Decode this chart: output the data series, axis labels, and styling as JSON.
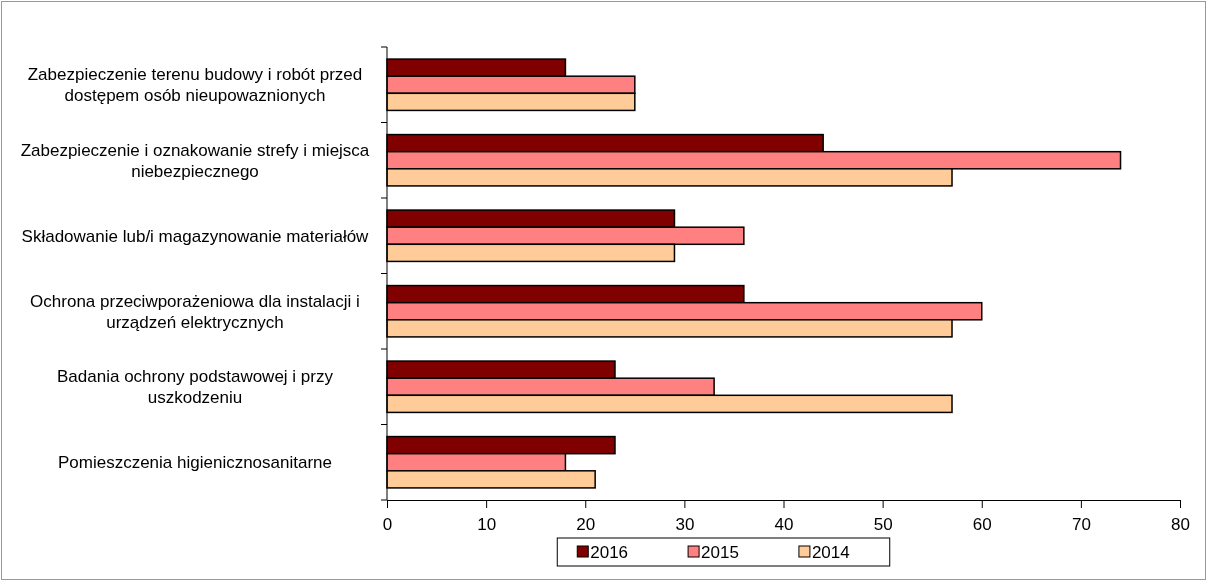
{
  "chart_data": {
    "type": "bar",
    "orientation": "horizontal",
    "categories": [
      "Zabezpieczenie terenu budowy i robót przed dostępem osób nieupowaznionych",
      "Zabezpieczenie i oznakowanie strefy i miejsca niebezpiecznego",
      "Składowanie lub/i magazynowanie materiałów",
      "Ochrona przeciwporażeniowa dla instalacji i urządzeń elektrycznych",
      "Badania ochrony podstawowej i przy uszkodzeniu",
      "Pomieszczenia higienicznosanitarne"
    ],
    "series": [
      {
        "name": "2016",
        "color": "#800000",
        "values": [
          18,
          44,
          29,
          36,
          23,
          23
        ]
      },
      {
        "name": "2015",
        "color": "#ff8080",
        "values": [
          25,
          74,
          36,
          60,
          33,
          18
        ]
      },
      {
        "name": "2014",
        "color": "#ffcc99",
        "values": [
          25,
          57,
          29,
          57,
          57,
          21
        ]
      }
    ],
    "xlim": [
      0,
      80
    ],
    "xticks": [
      0,
      10,
      20,
      30,
      40,
      50,
      60,
      70,
      80
    ],
    "grid": false,
    "legend": "bottom"
  }
}
